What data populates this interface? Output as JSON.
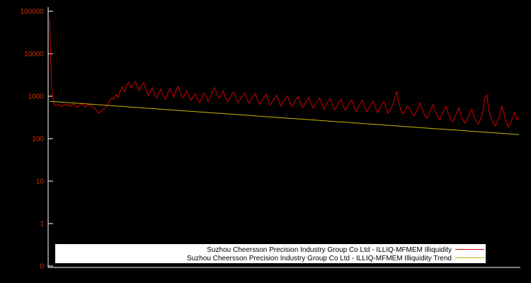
{
  "chart_data": {
    "type": "line",
    "title": "",
    "xlabel": "",
    "ylabel": "",
    "y_scale": "log",
    "y_ticks": [
      "100000",
      "10000",
      "1000",
      "100",
      "10",
      "1",
      "0"
    ],
    "x_tick_labels_visible": false,
    "background_color": "#000000",
    "axis_color": "#ffffff",
    "tick_label_color": "#cc3300",
    "legend": {
      "position": "bottom-center",
      "background": "#ffffff",
      "text_color": "#000000"
    },
    "series": [
      {
        "id": "illiquidity",
        "name": "Suzhou Cheersson Precision Industry Group Co Ltd - ILLIQ-MFMEM Illiquidity",
        "color": "#d40000",
        "values": [
          65000,
          1500,
          680,
          590,
          640,
          610,
          570,
          650,
          600,
          630,
          580,
          660,
          620,
          540,
          610,
          680,
          590,
          560,
          630,
          600,
          570,
          520,
          460,
          400,
          440,
          490,
          530,
          620,
          780,
          920,
          840,
          1100,
          950,
          1350,
          1650,
          1250,
          1850,
          2150,
          1550,
          1950,
          2250,
          1700,
          1350,
          1800,
          2050,
          1400,
          1050,
          1300,
          1600,
          1150,
          900,
          1250,
          1450,
          1000,
          850,
          1100,
          1500,
          1200,
          950,
          1400,
          1700,
          1250,
          900,
          1100,
          1350,
          1000,
          800,
          950,
          1150,
          850,
          700,
          900,
          1200,
          1000,
          750,
          950,
          1300,
          1600,
          1150,
          900,
          1050,
          1350,
          950,
          750,
          880,
          1100,
          1250,
          900,
          700,
          850,
          1000,
          1200,
          880,
          680,
          800,
          1000,
          1150,
          820,
          640,
          780,
          950,
          1100,
          800,
          620,
          750,
          900,
          1050,
          760,
          580,
          720,
          880,
          1000,
          740,
          560,
          680,
          850,
          980,
          700,
          540,
          660,
          800,
          950,
          680,
          520,
          640,
          780,
          900,
          650,
          500,
          620,
          760,
          880,
          620,
          480,
          580,
          720,
          850,
          600,
          460,
          560,
          700,
          820,
          580,
          440,
          540,
          680,
          800,
          560,
          430,
          520,
          650,
          780,
          540,
          410,
          500,
          640,
          760,
          520,
          400,
          480,
          620,
          900,
          1300,
          700,
          450,
          380,
          480,
          600,
          520,
          400,
          350,
          420,
          550,
          700,
          480,
          360,
          300,
          380,
          500,
          640,
          430,
          330,
          280,
          360,
          470,
          580,
          390,
          300,
          250,
          320,
          420,
          540,
          350,
          270,
          230,
          300,
          400,
          500,
          330,
          260,
          220,
          280,
          370,
          900,
          1050,
          450,
          300,
          240,
          200,
          260,
          340,
          600,
          380,
          250,
          190,
          230,
          310,
          420,
          280,
          320
        ]
      },
      {
        "id": "trend",
        "name": "Suzhou Cheersson Precision Industry Group Co Ltd - ILLIQ-MFMEM Illiquidity Trend",
        "color": "#c8b400",
        "values": [
          760,
          700,
          645,
          594,
          547,
          504,
          464,
          428,
          394,
          363,
          334,
          308,
          284,
          261,
          241,
          222,
          204,
          188,
          173,
          160,
          147,
          136,
          125
        ]
      }
    ]
  }
}
